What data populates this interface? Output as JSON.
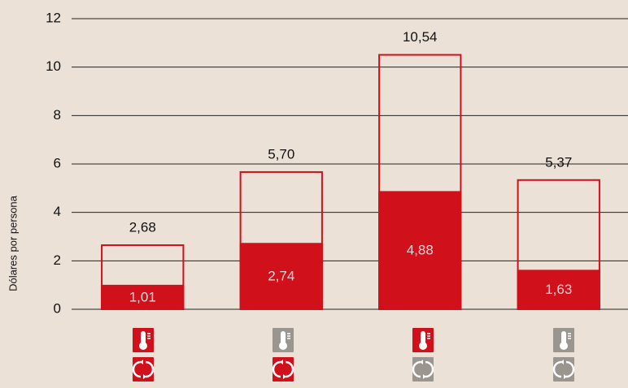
{
  "chart_data": {
    "type": "bar",
    "y_label": "Dólares por persona",
    "categories": [
      null,
      null,
      null,
      null
    ],
    "series": [
      {
        "style": "outline",
        "color": "#d0101b",
        "values": [
          2.68,
          5.7,
          10.54,
          5.37
        ],
        "value_labels": [
          "2,68",
          "5,70",
          "10,54",
          "5,37"
        ]
      },
      {
        "style": "solid",
        "color": "#d0101b",
        "values": [
          1.01,
          2.74,
          4.88,
          1.63
        ],
        "value_labels": [
          "1,01",
          "2,74",
          "4,88",
          "1,63"
        ]
      }
    ],
    "ylim": [
      0,
      12
    ],
    "yticks": [
      0,
      2,
      4,
      6,
      8,
      10,
      12
    ],
    "grid": true
  }
}
